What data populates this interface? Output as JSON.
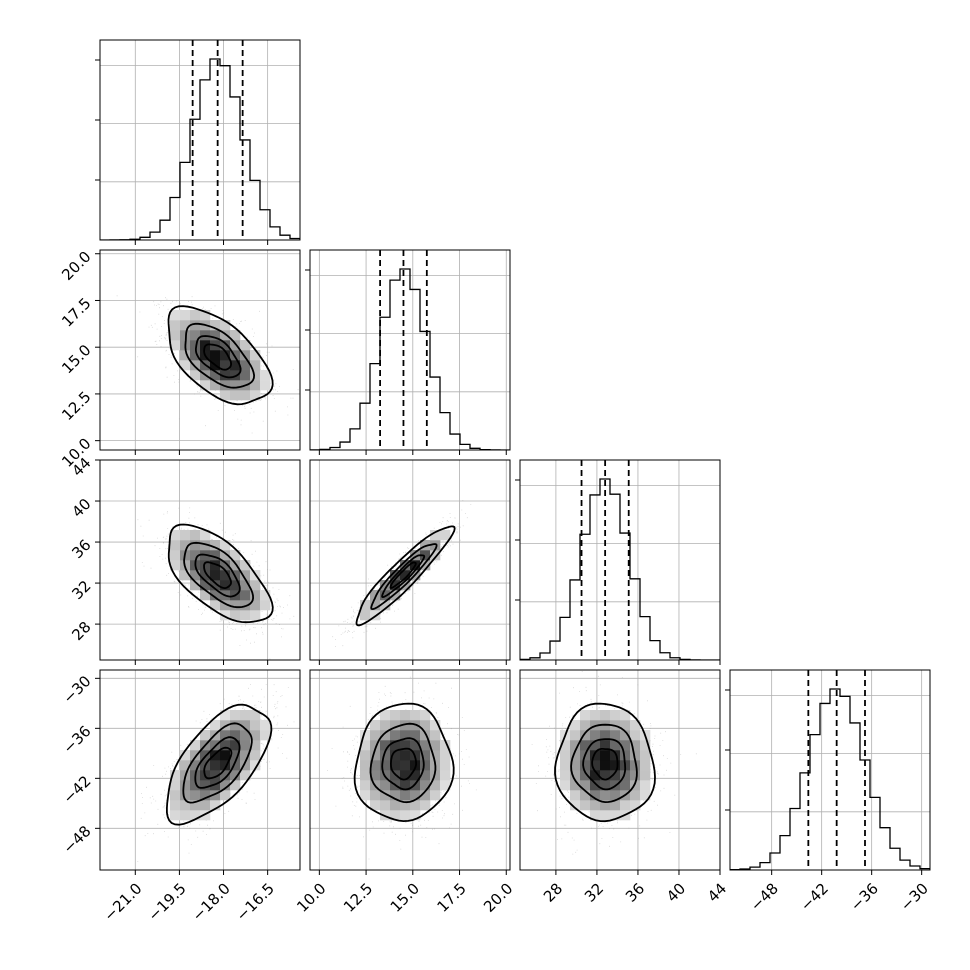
{
  "chart_data": {
    "type": "corner",
    "grid": true,
    "params": [
      {
        "mean": -18.2,
        "sd": 0.85,
        "range": [
          -22.2,
          -15.4
        ],
        "quantiles": [
          -19.05,
          -18.2,
          -17.35
        ],
        "ticks": [
          -21.0,
          -19.5,
          -18.0,
          -16.5
        ],
        "tick_labels": [
          "−21.0",
          "−19.5",
          "−18.0",
          "−16.5"
        ]
      },
      {
        "mean": 14.5,
        "sd": 1.25,
        "range": [
          9.5,
          20.2
        ],
        "quantiles": [
          13.25,
          14.5,
          15.75
        ],
        "ticks": [
          10.0,
          12.5,
          15.0,
          17.5,
          20.0
        ],
        "tick_labels": [
          "10.0",
          "12.5",
          "15.0",
          "17.5",
          "20.0"
        ]
      },
      {
        "mean": 32.8,
        "sd": 2.3,
        "range": [
          24.5,
          44.0
        ],
        "quantiles": [
          30.5,
          32.8,
          35.1
        ],
        "ticks": [
          28,
          32,
          36,
          40,
          44
        ],
        "tick_labels": [
          "28",
          "32",
          "36",
          "40",
          "44"
        ]
      },
      {
        "mean": -40.2,
        "sd": 3.4,
        "range": [
          -53.0,
          -29.0
        ],
        "quantiles": [
          -43.6,
          -40.2,
          -36.8
        ],
        "ticks": [
          -48,
          -42,
          -36,
          -30
        ],
        "tick_labels": [
          "−48",
          "−42",
          "−36",
          "−30"
        ]
      }
    ],
    "correlations": {
      "1-0": -0.55,
      "2-0": -0.62,
      "2-1": 0.93,
      "3-0": 0.62,
      "3-1": 0.03,
      "3-2": -0.03
    },
    "histogram_bins": 20,
    "contour_levels_sigma": [
      0.5,
      1.0,
      1.5,
      2.0
    ]
  }
}
